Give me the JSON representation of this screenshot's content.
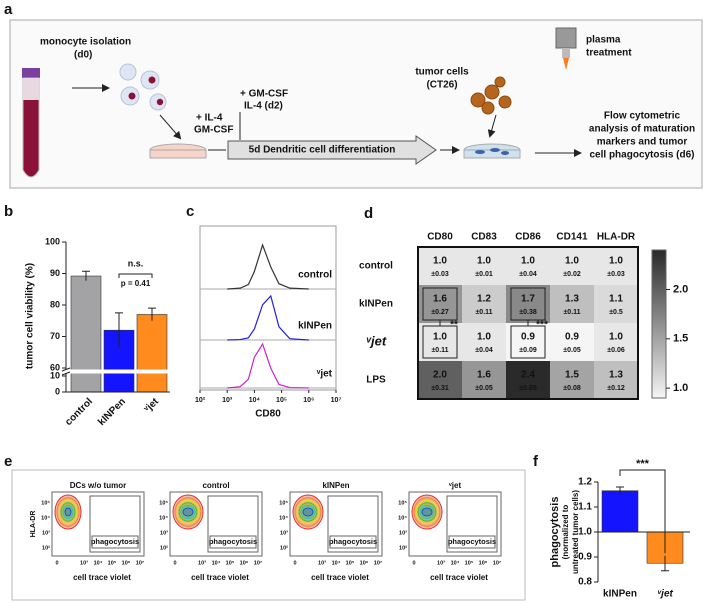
{
  "panel_labels": [
    "a",
    "b",
    "c",
    "d",
    "e",
    "f"
  ],
  "diagram": {
    "texts": [
      "monocyte isolation",
      "(d0)",
      "+ IL-4",
      "GM-CSF",
      "+ GM-CSF",
      "IL-4 (d2)",
      "5d Dendritic cell differentiation",
      "tumor cells",
      "(CT26)",
      "plasma",
      "treatment",
      "Flow cytometric",
      "analysis of maturation",
      "markers and tumor",
      "cell phagocytosis (d6)"
    ]
  },
  "chart_data": [
    {
      "type": "bar",
      "categories": [
        "control",
        "kINPen",
        "ᵛjet"
      ],
      "values": [
        89.2,
        72,
        77
      ],
      "errors": [
        1.5,
        5.5,
        2
      ],
      "colors": [
        "#a3a3a6",
        "#1414ff",
        "#ff8a1e"
      ],
      "ylabel": "tumor cell viability (%)",
      "ylim": [
        0,
        100
      ],
      "ybreak": [
        10,
        60
      ],
      "yticks": [
        0,
        10,
        60,
        70,
        80,
        90,
        100
      ],
      "annotations": [
        "n.s.",
        "p = 0.41"
      ]
    },
    {
      "type": "density",
      "xlabel": "CD80",
      "xscale": "log",
      "xlim": [
        100,
        10000000
      ],
      "xticks": [
        {
          "value": 100,
          "label": "10²"
        },
        {
          "value": 1000,
          "label": "10³"
        },
        {
          "value": 10000,
          "label": "10⁴"
        },
        {
          "value": 100000,
          "label": "10⁵"
        },
        {
          "value": 1000000,
          "label": "10⁶"
        },
        {
          "value": 10000000,
          "label": "10⁷"
        }
      ],
      "x": [
        1000,
        3000,
        6000,
        10000,
        20000,
        40000,
        80000,
        200000,
        1000000
      ],
      "ylim": [
        0,
        100
      ],
      "series": [
        {
          "name": "control",
          "color": "#333333",
          "values": [
            0,
            2,
            10,
            40,
            100,
            50,
            12,
            2,
            0
          ]
        },
        {
          "name": "kINPen",
          "color": "#2222dd",
          "values": [
            0,
            1,
            5,
            25,
            80,
            100,
            30,
            3,
            0
          ]
        },
        {
          "name": "ᵛjet",
          "color": "#cc22cc",
          "values": [
            0,
            3,
            20,
            70,
            100,
            45,
            8,
            1,
            0
          ]
        }
      ]
    },
    {
      "type": "heatmap",
      "columns": [
        "CD80",
        "CD83",
        "CD86",
        "CD141",
        "HLA-DR"
      ],
      "rows": [
        "control",
        "kINPen",
        "ᵛjet",
        "LPS"
      ],
      "values": [
        [
          1,
          1,
          1,
          1,
          1
        ],
        [
          1.6,
          1.2,
          1.7,
          1.3,
          1.1
        ],
        [
          1,
          1,
          0.9,
          0.9,
          1
        ],
        [
          2,
          1.6,
          2.4,
          1.5,
          1.3
        ]
      ],
      "value_labels": [
        [
          "1.0",
          "1.0",
          "1.0",
          "1.0",
          "1.0"
        ],
        [
          "1.6",
          "1.2",
          "1.7",
          "1.3",
          "1.1"
        ],
        [
          "1.0",
          "1.0",
          "0.9",
          "0.9",
          "1.0"
        ],
        [
          "2.0",
          "1.6",
          "2.4",
          "1.5",
          "1.3"
        ]
      ],
      "errors": [
        [
          0.03,
          0.01,
          0.04,
          0.02,
          0.03
        ],
        [
          0.27,
          0.11,
          0.38,
          0.11,
          0.5
        ],
        [
          0.11,
          0.04,
          0.09,
          0.05,
          0.06
        ],
        [
          0.31,
          0.05,
          0.05,
          0.08,
          0.12
        ]
      ],
      "error_labels": [
        [
          "±0.03",
          "±0.01",
          "±0.04",
          "±0.02",
          "±0.03"
        ],
        [
          "±0.27",
          "±0.11",
          "±0.38",
          "±0.11",
          "±0.5"
        ],
        [
          "±0.11",
          "±0.04",
          "±0.09",
          "±0.05",
          "±0.06"
        ],
        [
          "±0.31",
          "±0.05",
          "±0.05",
          "±0.08",
          "±0.12"
        ]
      ],
      "zlim": [
        0.9,
        2.4
      ],
      "zticks": [
        {
          "value": 1,
          "label": "1.0"
        },
        {
          "value": 1.5,
          "label": "1.5"
        },
        {
          "value": 2,
          "label": "2.0"
        }
      ],
      "colors": [
        "#f5f5f5",
        "#2a2a2a"
      ],
      "annotations": [
        "**",
        "***"
      ]
    },
    {
      "type": "bar",
      "categories": [
        "kINPen",
        "ᵛjet"
      ],
      "values": [
        1.165,
        0.875
      ],
      "errors": [
        0.015,
        0.03
      ],
      "colors": [
        "#1414ff",
        "#ff8a1e"
      ],
      "bar_base": 1,
      "ylabel": [
        "phagocytosis",
        "(normalized to",
        "untreated tumor cells)"
      ],
      "ylim": [
        0.8,
        1.2
      ],
      "yticks": [
        0.8,
        0.9,
        {
          "value": 1,
          "label": "1.0"
        },
        1.1,
        1.2
      ],
      "annotations": [
        "***"
      ]
    }
  ],
  "flow_plots": {
    "panels": [
      "DCs w/o tumor",
      "control",
      "kINPen",
      "ᵛjet"
    ],
    "gate_label": "phagocytosis",
    "xlabel": "cell trace violet",
    "ylabel": "HLA-DR",
    "xticks": [
      "0",
      "10³",
      "10⁴",
      "10⁵",
      "10⁶",
      "10⁷"
    ],
    "yticks": [
      "10²",
      "10³",
      "10⁴",
      "10⁵"
    ]
  }
}
